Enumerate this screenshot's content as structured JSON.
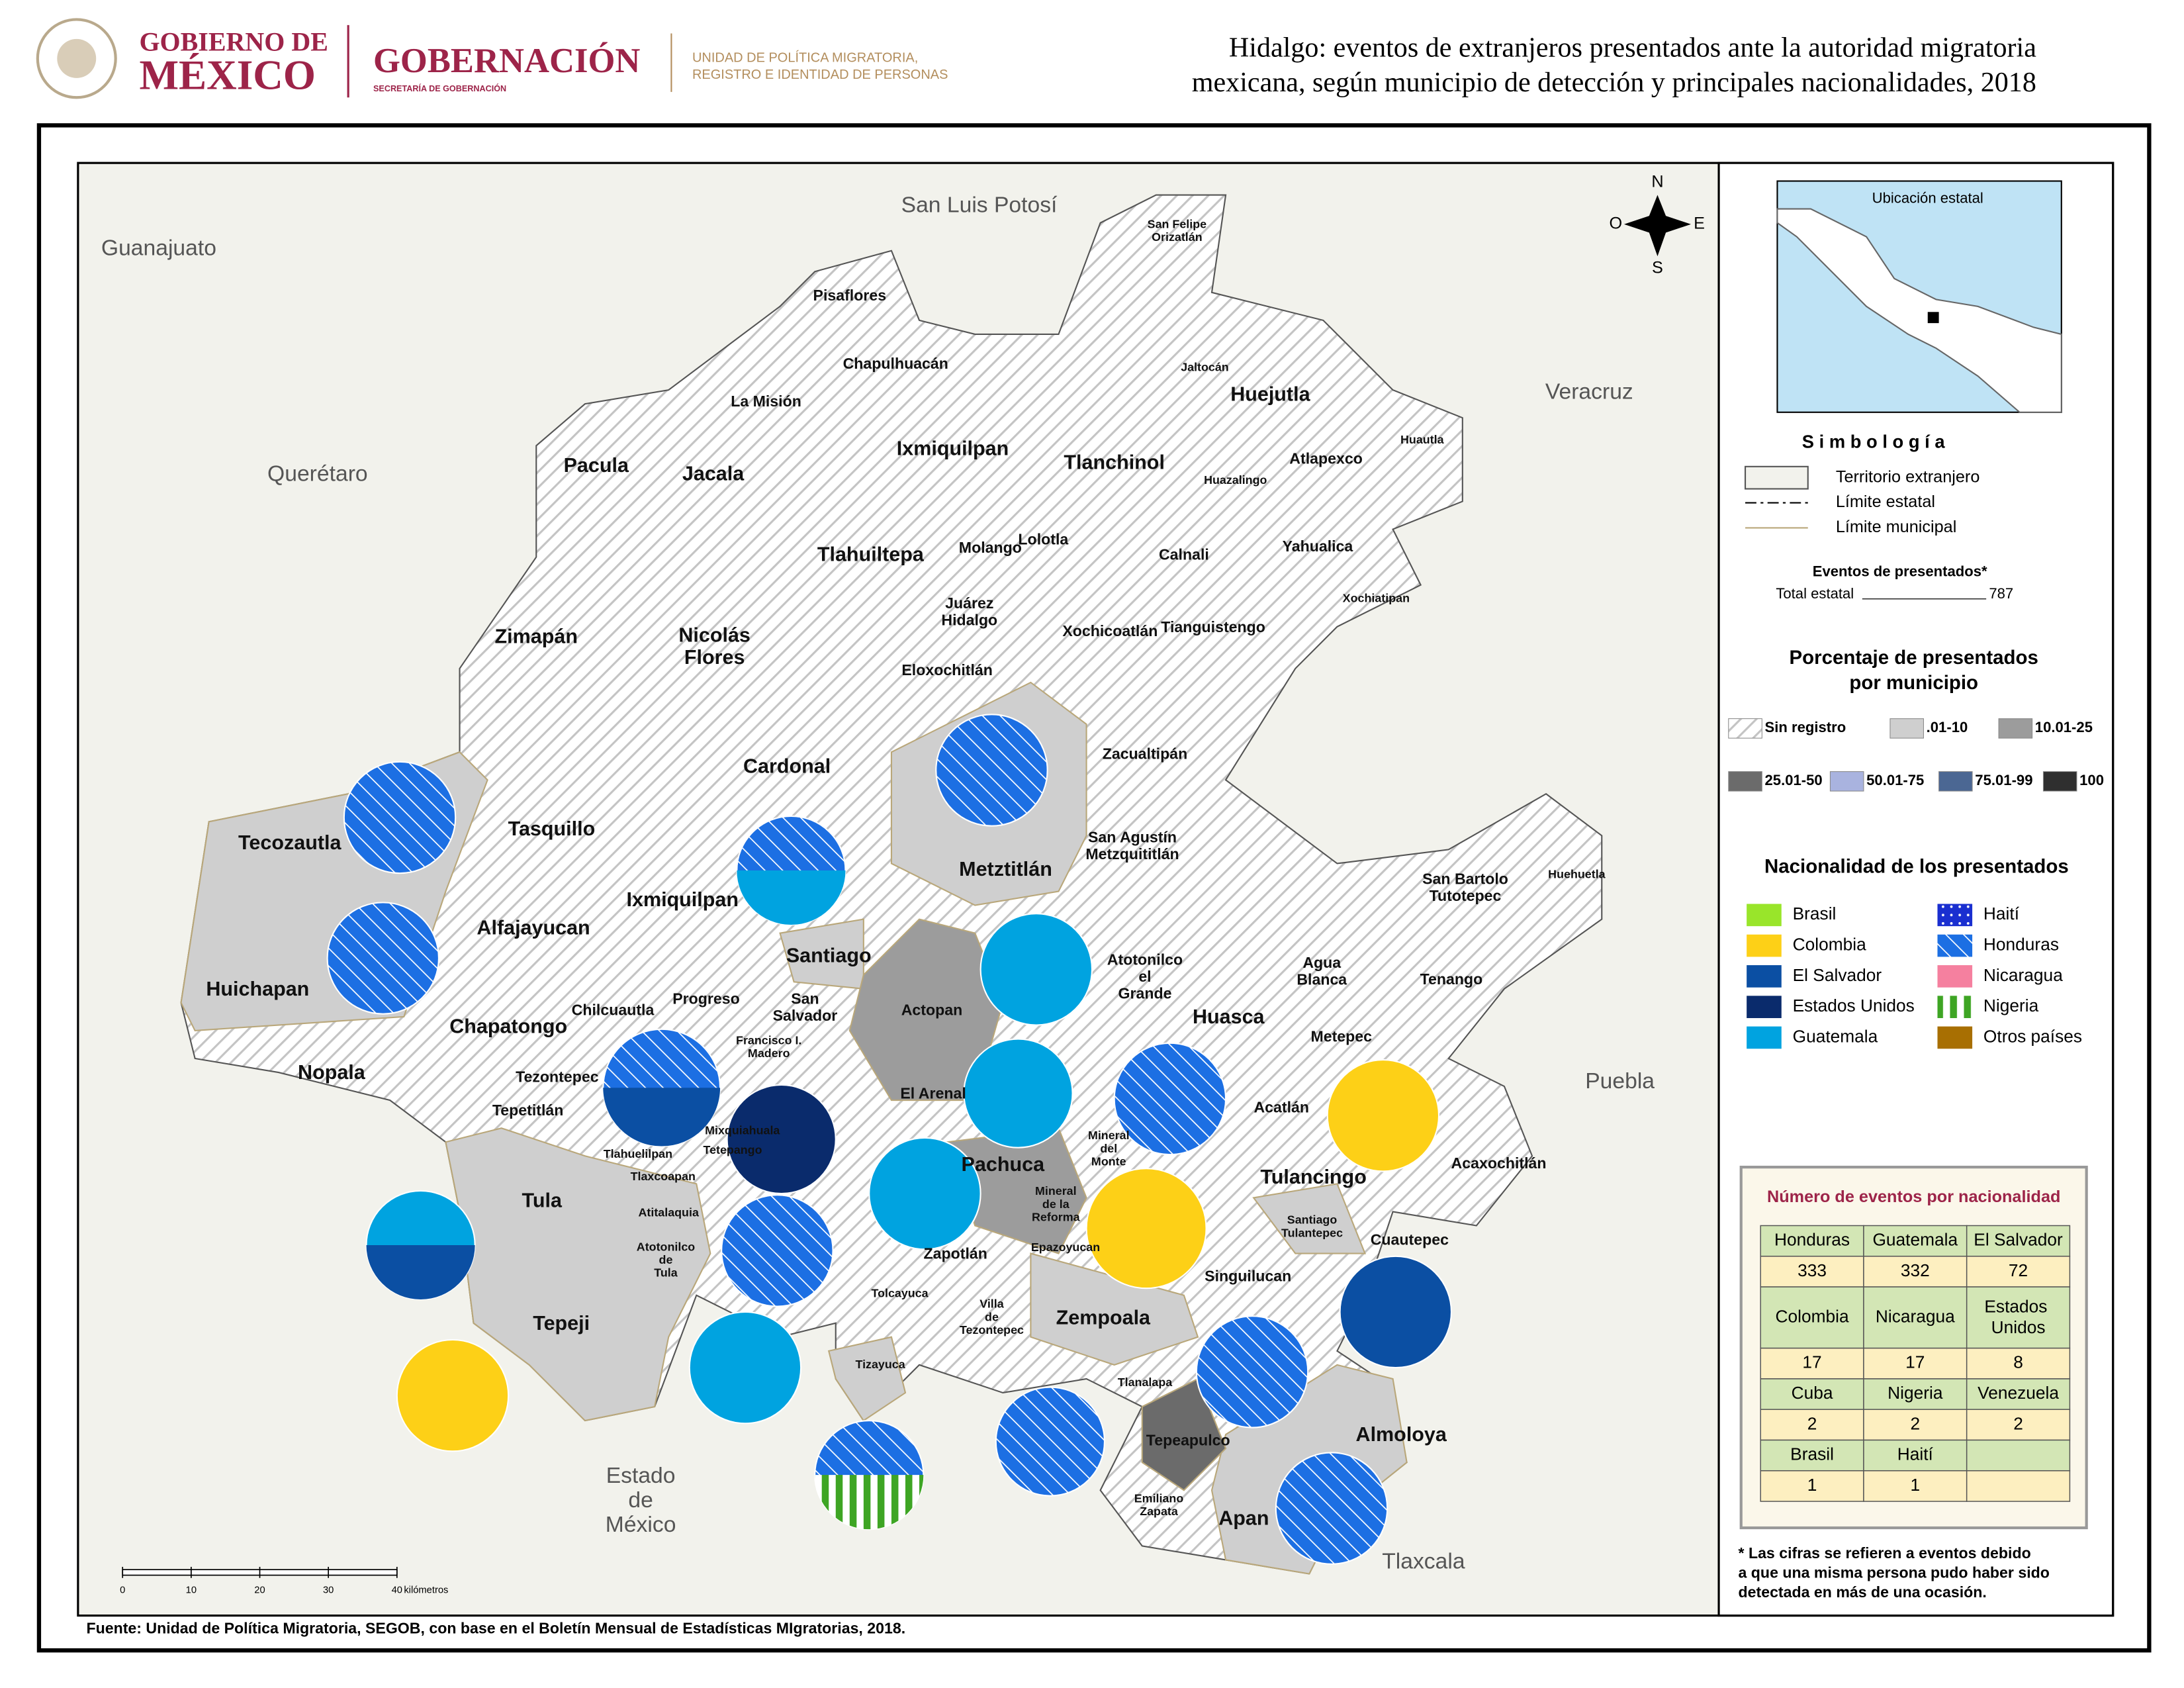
{
  "header": {
    "gov_line1": "GOBIERNO DE",
    "gov_line2": "MÉXICO",
    "ministry": "GOBERNACIÓN",
    "ministry_sub": "SECRETARÍA DE GOBERNACIÓN",
    "unit": [
      "UNIDAD DE POLÍTICA MIGRATORIA,",
      "REGISTRO E IDENTIDAD DE PERSONAS"
    ],
    "title": [
      "Hidalgo: eventos de extranjeros presentados ante la autoridad migratoria",
      "mexicana, según municipio de detección y principales nacionalidades, 2018"
    ]
  },
  "map": {
    "neighbors": [
      [
        "San Luis Potosí"
      ],
      [
        "Guanajuato"
      ],
      [
        "Veracruz"
      ],
      [
        "Querétaro"
      ],
      [
        "Puebla"
      ],
      [
        "Estado",
        "de",
        "México"
      ],
      [
        "Tlaxcala"
      ]
    ],
    "municipalities": [
      [
        "San Felipe",
        "Orizatlán"
      ],
      [
        "Pisaflores"
      ],
      [
        "Chapulhuacán"
      ],
      [
        "Jaltocán"
      ],
      [
        "Huejutla"
      ],
      [
        "La Misión"
      ],
      [
        "Pacula"
      ],
      [
        "Jacala"
      ],
      [
        "Ixmiquilpan"
      ],
      [
        "Tlanchinol"
      ],
      [
        "Atlapexco"
      ],
      [
        "Huautla"
      ],
      [
        "Huazalingo"
      ],
      [
        "Molango"
      ],
      [
        "Lolotla"
      ],
      [
        "Tlahuiltepa"
      ],
      [
        "Calnali"
      ],
      [
        "Yahualica"
      ],
      [
        "Xochiatipan"
      ],
      [
        "Juárez",
        "Hidalgo"
      ],
      [
        "Xochicoatlán"
      ],
      [
        "Tianguistengo"
      ],
      [
        "Zimapán"
      ],
      [
        "Nicolás",
        "Flores"
      ],
      [
        "Eloxochitlán"
      ],
      [
        "Cardonal"
      ],
      [
        "Zacualtipán"
      ],
      [
        "Tasquillo"
      ],
      [
        "Tecozautla"
      ],
      [
        "San Agustín",
        "Metzquititlán"
      ],
      [
        "Metztitlán"
      ],
      [
        "Ixmiquilpan"
      ],
      [
        "Alfajayucan"
      ],
      [
        "San Bartolo",
        "Tutotepec"
      ],
      [
        "Huehuetla"
      ],
      [
        "Santiago"
      ],
      [
        "Huichapan"
      ],
      [
        "Atotonilco",
        "el",
        "Grande"
      ],
      [
        "Agua",
        "Blanca"
      ],
      [
        "Actopan"
      ],
      [
        "Progreso"
      ],
      [
        "San",
        "Salvador"
      ],
      [
        "Chilcuautla"
      ],
      [
        "Tenango"
      ],
      [
        "Huasca"
      ],
      [
        "Chapatongo"
      ],
      [
        "Nopala"
      ],
      [
        "Francisco I.",
        "Madero"
      ],
      [
        "Metepec"
      ],
      [
        "Tezontepec"
      ],
      [
        "El Arenal"
      ],
      [
        "Tepetitlán"
      ],
      [
        "Acatlán"
      ],
      [
        "Mixquiahuala"
      ],
      [
        "Tlahuelilpan"
      ],
      [
        "Tetepango"
      ],
      [
        "Mineral",
        "del",
        "Monte"
      ],
      [
        "Pachuca"
      ],
      [
        "Acaxochitlán"
      ],
      [
        "Tula"
      ],
      [
        "Tlaxcoapan"
      ],
      [
        "Tulancingo"
      ],
      [
        "Mineral",
        "de la",
        "Reforma"
      ],
      [
        "Atitalaquia"
      ],
      [
        "Santiago",
        "Tulantepec"
      ],
      [
        "Cuautepec"
      ],
      [
        "Epazoyucan"
      ],
      [
        "Zapotlán"
      ],
      [
        "Atotonilco",
        "de",
        "Tula"
      ],
      [
        "Singuilucan"
      ],
      [
        "Tolcayuca"
      ],
      [
        "Tepeji"
      ],
      [
        "Villa",
        "de",
        "Tezontepec"
      ],
      [
        "Zempoala"
      ],
      [
        "Tizayuca"
      ],
      [
        "Tlanalapa"
      ],
      [
        "Almoloya"
      ],
      [
        "Tepeapulco"
      ],
      [
        "Emiliano",
        "Zapata"
      ],
      [
        "Apan"
      ]
    ],
    "compass": [
      "N",
      "S",
      "O",
      "E"
    ],
    "scale": {
      "ticks": [
        0,
        10,
        20,
        30,
        40
      ],
      "unit": "kilómetros"
    }
  },
  "legend": {
    "inset_title": "Ubicación estatal",
    "symbology_title": "S i m b o l o g í a",
    "symbology": [
      "Territorio extranjero",
      "Límite estatal",
      "Límite municipal"
    ],
    "events_title": "Eventos de presentados*",
    "total_label": "Total estatal",
    "total": 787,
    "percent_title": [
      "Porcentaje de presentados",
      "por municipio"
    ],
    "percent": [
      {
        "label": "Sin registro",
        "color": "hatch"
      },
      {
        "label": ".01-10",
        "color": "#cfcfcf"
      },
      {
        "label": "10.01-25",
        "color": "#9c9c9c"
      },
      {
        "label": "25.01-50",
        "color": "#6b6b6b"
      },
      {
        "label": "50.01-75",
        "color": "#a9b3df"
      },
      {
        "label": "75.01-99",
        "color": "#4b6793"
      },
      {
        "label": "100",
        "color": "#2f2f2f"
      }
    ],
    "nationality_title": "Nacionalidad de los presentados",
    "nationalities": [
      {
        "label": "Brasil",
        "color": "#99e52a"
      },
      {
        "label": "Haití",
        "color": "#1a2fd0"
      },
      {
        "label": "Colombia",
        "color": "#fdd017"
      },
      {
        "label": "Honduras",
        "color": "#1c6fe3"
      },
      {
        "label": "El Salvador",
        "color": "#0b4fa3"
      },
      {
        "label": "Nicaragua",
        "color": "#f5809f"
      },
      {
        "label": "Estados Unidos",
        "color": "#0a2b6c"
      },
      {
        "label": "Nigeria",
        "color": "#3ea524"
      },
      {
        "label": "Guatemala",
        "color": "#00a3e0"
      },
      {
        "label": "Otros países",
        "color": "#a86f02"
      }
    ]
  },
  "table": {
    "title": "Número de eventos por nacionalidad",
    "rows": [
      [
        "Honduras",
        "Guatemala",
        "El Salvador"
      ],
      [
        333,
        332,
        72
      ],
      [
        "Colombia",
        "Nicaragua",
        "Estados Unidos"
      ],
      [
        17,
        17,
        8
      ],
      [
        "Cuba",
        "Nigeria",
        "Venezuela"
      ],
      [
        2,
        2,
        2
      ],
      [
        "Brasil",
        "Haití"
      ],
      [
        1,
        1
      ]
    ]
  },
  "footnote": [
    "* Las cifras se refieren a eventos debido",
    "a que una misma persona pudo haber sido",
    "detectada en más de una ocasión."
  ],
  "source": "Fuente: Unidad de Política Migratoria, SEGOB, con base en el Boletín Mensual de Estadísticas MIgratorias, 2018."
}
